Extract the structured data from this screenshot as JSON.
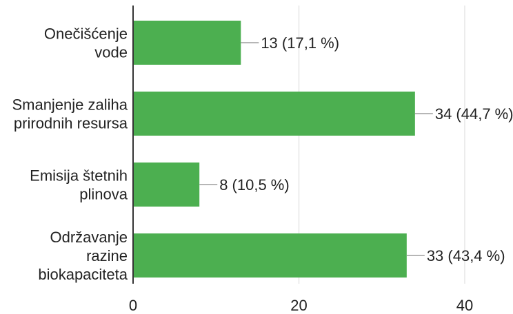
{
  "chart_data": {
    "type": "bar",
    "orientation": "horizontal",
    "categories": [
      [
        "Onečišćenje",
        "vode"
      ],
      [
        "Smanjenje zaliha",
        "prirodnih resursa"
      ],
      [
        "Emisija štetnih",
        "plinova"
      ],
      [
        "Održavanje",
        "razine",
        "biokapaciteta"
      ]
    ],
    "values": [
      13,
      34,
      8,
      33
    ],
    "data_labels": [
      "13 (17,1 %)",
      "34 (44,7 %)",
      "8 (10,5 %)",
      "33 (43,4 %)"
    ],
    "x_ticks": [
      "0",
      "20",
      "40"
    ],
    "x_tick_values": [
      0,
      20,
      40
    ],
    "xlim": [
      0,
      40
    ],
    "grid": true,
    "bar_color": "#4caf50",
    "grid_color": "#e6e6e6"
  }
}
